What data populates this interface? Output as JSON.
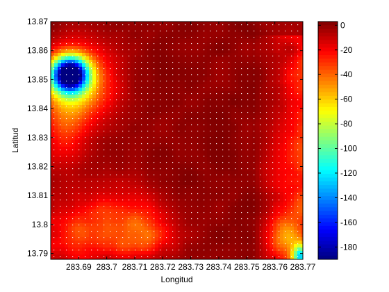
{
  "chart_data": {
    "type": "heatmap",
    "title": "",
    "xlabel": "Longitud",
    "ylabel": "Latitud",
    "xlim": [
      283.68,
      283.77
    ],
    "ylim": [
      13.788,
      13.87
    ],
    "x_ticks": [
      {
        "value": 283.69,
        "label": "283.69"
      },
      {
        "value": 283.7,
        "label": "283.7"
      },
      {
        "value": 283.71,
        "label": "283.71"
      },
      {
        "value": 283.72,
        "label": "283.72"
      },
      {
        "value": 283.73,
        "label": "283.73"
      },
      {
        "value": 283.74,
        "label": "283.74"
      },
      {
        "value": 283.75,
        "label": "283.75"
      },
      {
        "value": 283.76,
        "label": "283.76"
      },
      {
        "value": 283.77,
        "label": "283.77"
      }
    ],
    "y_ticks": [
      {
        "value": 13.79,
        "label": "13.79"
      },
      {
        "value": 13.8,
        "label": "13.8"
      },
      {
        "value": 13.81,
        "label": "13.81"
      },
      {
        "value": 13.82,
        "label": "13.82"
      },
      {
        "value": 13.83,
        "label": "13.83"
      },
      {
        "value": 13.84,
        "label": "13.84"
      },
      {
        "value": 13.85,
        "label": "13.85"
      },
      {
        "value": 13.86,
        "label": "13.86"
      },
      {
        "value": 13.87,
        "label": "13.87"
      }
    ],
    "colorbar": {
      "colormap": "jet",
      "range": [
        -190,
        3
      ],
      "ticks": [
        {
          "value": 0,
          "label": "0"
        },
        {
          "value": -20,
          "label": "-20"
        },
        {
          "value": -40,
          "label": "-40"
        },
        {
          "value": -60,
          "label": "-60"
        },
        {
          "value": -80,
          "label": "-80"
        },
        {
          "value": -100,
          "label": "-100"
        },
        {
          "value": -120,
          "label": "-120"
        },
        {
          "value": -140,
          "label": "-140"
        },
        {
          "value": -160,
          "label": "-160"
        },
        {
          "value": -180,
          "label": "-180"
        }
      ]
    },
    "sample_points": "white dots on a regular grid",
    "grid": false,
    "regions": [
      {
        "description": "deep low",
        "lon": 283.6845,
        "lat": 13.853,
        "value": -180
      },
      {
        "description": "central high plateau",
        "lon": 283.725,
        "lat": 13.835,
        "value": 0
      },
      {
        "description": "south-west band",
        "lon": 283.69,
        "lat": 13.8,
        "value": -35
      },
      {
        "description": "east band",
        "lon": 283.765,
        "lat": 13.82,
        "value": -30
      },
      {
        "description": "south-east corner",
        "lon": 283.7695,
        "lat": 13.789,
        "value": -90
      }
    ]
  },
  "colors": {
    "background": "#ffffff",
    "axis": "#000000",
    "sample_dot": "#ffffff"
  }
}
